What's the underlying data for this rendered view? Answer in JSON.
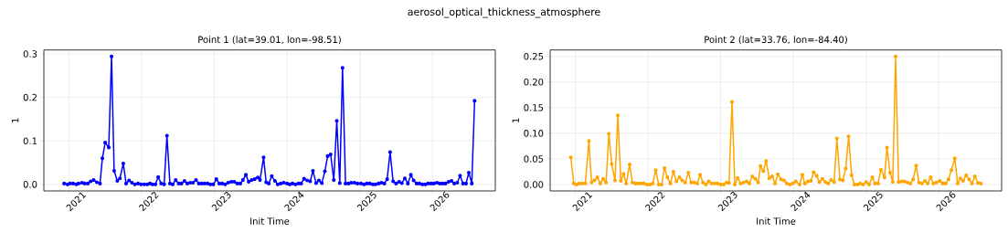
{
  "chart_data": [
    {
      "type": "line",
      "title": "Point 1 (lat=39.01, lon=-98.51)",
      "xlabel": "Init Time",
      "ylabel": "1",
      "annotations": [
        "aerosol_optical_thickness_atmosphere"
      ],
      "grid": true,
      "marker": "circle",
      "line_style": "solid",
      "xlim": [
        "2020-08-28",
        "2026-11-12"
      ],
      "xticks": [
        {
          "value": "2021-01-01",
          "label": "2021"
        },
        {
          "value": "2022-01-01",
          "label": "2022"
        },
        {
          "value": "2023-01-01",
          "label": "2023"
        },
        {
          "value": "2024-01-01",
          "label": "2024"
        },
        {
          "value": "2025-01-01",
          "label": "2025"
        },
        {
          "value": "2026-01-01",
          "label": "2026"
        }
      ],
      "ylim": [
        -0.015,
        0.309
      ],
      "yticks": [
        {
          "value": 0,
          "label": "0.0"
        },
        {
          "value": 0.1,
          "label": "0.1"
        },
        {
          "value": 0.2,
          "label": "0.2"
        },
        {
          "value": 0.3,
          "label": "0.3"
        }
      ],
      "x": [
        "2020-12-08",
        "2020-12-25",
        "2021-01-07",
        "2021-01-22",
        "2021-02-07",
        "2021-02-18",
        "2021-03-08",
        "2021-03-21",
        "2021-04-06",
        "2021-04-20",
        "2021-05-05",
        "2021-05-21",
        "2021-06-06",
        "2021-06-18",
        "2021-07-02",
        "2021-07-20",
        "2021-08-03",
        "2021-08-16",
        "2021-09-01",
        "2021-09-14",
        "2021-10-01",
        "2021-10-15",
        "2021-10-30",
        "2021-11-13",
        "2021-11-28",
        "2021-12-14",
        "2021-12-29",
        "2022-01-14",
        "2022-01-29",
        "2022-02-12",
        "2022-02-25",
        "2022-03-11",
        "2022-03-25",
        "2022-04-09",
        "2022-04-24",
        "2022-05-08",
        "2022-05-23",
        "2022-06-06",
        "2022-06-21",
        "2022-07-06",
        "2022-07-20",
        "2022-08-04",
        "2022-08-18",
        "2022-09-02",
        "2022-09-16",
        "2022-10-01",
        "2022-10-15",
        "2022-10-30",
        "2022-11-13",
        "2022-11-28",
        "2022-12-12",
        "2022-12-27",
        "2023-01-11",
        "2023-01-25",
        "2023-02-09",
        "2023-02-24",
        "2023-03-11",
        "2023-03-27",
        "2023-04-11",
        "2023-04-26",
        "2023-05-11",
        "2023-05-24",
        "2023-06-08",
        "2023-06-22",
        "2023-07-07",
        "2023-07-22",
        "2023-08-07",
        "2023-08-18",
        "2023-09-05",
        "2023-09-18",
        "2023-10-01",
        "2023-10-16",
        "2023-11-01",
        "2023-11-15",
        "2023-11-30",
        "2023-12-15",
        "2024-01-01",
        "2024-01-14",
        "2024-01-28",
        "2024-02-12",
        "2024-02-27",
        "2024-03-12",
        "2024-03-26",
        "2024-04-11",
        "2024-04-26",
        "2024-05-10",
        "2024-05-26",
        "2024-06-09",
        "2024-06-24",
        "2024-07-09",
        "2024-07-23",
        "2024-08-07",
        "2024-08-23",
        "2024-09-07",
        "2024-09-22",
        "2024-10-06",
        "2024-10-21",
        "2024-11-05",
        "2024-11-19",
        "2024-12-05",
        "2024-12-20",
        "2025-01-07",
        "2025-01-22",
        "2025-02-05",
        "2025-02-20",
        "2025-03-07",
        "2025-03-21",
        "2025-04-05",
        "2025-04-19",
        "2025-05-04",
        "2025-05-18",
        "2025-06-02",
        "2025-06-17",
        "2025-07-02",
        "2025-07-17",
        "2025-07-31",
        "2025-08-15",
        "2025-08-30",
        "2025-09-14",
        "2025-09-28",
        "2025-10-13",
        "2025-10-27",
        "2025-11-11",
        "2025-11-26",
        "2025-12-10",
        "2025-12-25",
        "2026-01-08",
        "2026-01-23",
        "2026-02-06",
        "2026-02-21",
        "2026-03-07",
        "2026-03-22",
        "2026-04-06",
        "2026-04-20",
        "2026-05-05",
        "2026-05-19",
        "2026-06-03",
        "2026-06-18",
        "2026-07-02",
        "2026-07-17",
        "2026-07-31"
      ],
      "series": [
        {
          "color": "#0000ff",
          "values": [
            0.002,
            0,
            0.002,
            0.002,
            0,
            0.002,
            0.004,
            0.002,
            0.002,
            0.007,
            0.01,
            0.005,
            0.002,
            0.06,
            0.096,
            0.085,
            0.294,
            0.031,
            0.008,
            0.014,
            0.048,
            0.002,
            0.009,
            0.004,
            0,
            0.002,
            0,
            0,
            0,
            0.002,
            0,
            0,
            0.017,
            0.002,
            0,
            0.112,
            0.002,
            0,
            0.01,
            0.002,
            0.002,
            0.008,
            0.002,
            0.004,
            0.004,
            0.01,
            0.002,
            0.002,
            0.002,
            0.002,
            0,
            0,
            0.012,
            0.002,
            0.002,
            0,
            0.004,
            0.006,
            0.006,
            0.002,
            0.002,
            0.01,
            0.022,
            0.006,
            0.01,
            0.012,
            0.016,
            0.01,
            0.062,
            0.005,
            0.002,
            0.019,
            0.008,
            0,
            0.002,
            0.004,
            0.002,
            0,
            0.002,
            0,
            0.002,
            0.002,
            0.013,
            0.009,
            0.007,
            0.031,
            0.003,
            0.009,
            0.003,
            0.03,
            0.065,
            0.069,
            0.01,
            0.146,
            0.003,
            0.268,
            0.002,
            0.002,
            0.004,
            0.004,
            0.002,
            0.002,
            0,
            0.002,
            0.002,
            0,
            0,
            0.002,
            0.004,
            0.002,
            0.012,
            0.074,
            0.007,
            0.002,
            0.006,
            0.003,
            0.014,
            0.002,
            0.022,
            0.009,
            0.002,
            0.002,
            0,
            0,
            0.002,
            0.002,
            0.002,
            0.004,
            0.002,
            0.002,
            0.002,
            0.006,
            0.008,
            0.002,
            0.004,
            0.02,
            0.002,
            0.002,
            0.027,
            0.002,
            0.192
          ]
        }
      ]
    },
    {
      "type": "line",
      "title": "Point 2 (lat=33.76, lon=-84.40)",
      "xlabel": "Init Time",
      "ylabel": "1",
      "grid": true,
      "marker": "circle",
      "line_style": "solid",
      "xlim": [
        "2020-08-28",
        "2026-11-12"
      ],
      "xticks": [
        {
          "value": "2021-01-01",
          "label": "2021"
        },
        {
          "value": "2022-01-01",
          "label": "2022"
        },
        {
          "value": "2023-01-01",
          "label": "2023"
        },
        {
          "value": "2024-01-01",
          "label": "2024"
        },
        {
          "value": "2025-01-01",
          "label": "2025"
        },
        {
          "value": "2026-01-01",
          "label": "2026"
        }
      ],
      "ylim": [
        -0.0125,
        0.2625
      ],
      "yticks": [
        {
          "value": 0,
          "label": "0.00"
        },
        {
          "value": 0.05,
          "label": "0.05"
        },
        {
          "value": 0.1,
          "label": "0.10"
        },
        {
          "value": 0.15,
          "label": "0.15"
        },
        {
          "value": 0.2,
          "label": "0.20"
        },
        {
          "value": 0.25,
          "label": "0.25"
        }
      ],
      "x": [
        "2020-12-10",
        "2020-12-25",
        "2021-01-08",
        "2021-01-22",
        "2021-02-06",
        "2021-02-21",
        "2021-03-11",
        "2021-03-24",
        "2021-04-07",
        "2021-04-22",
        "2021-05-07",
        "2021-05-21",
        "2021-06-05",
        "2021-06-19",
        "2021-07-03",
        "2021-07-20",
        "2021-08-03",
        "2021-08-18",
        "2021-09-01",
        "2021-09-14",
        "2021-10-01",
        "2021-10-15",
        "2021-10-30",
        "2021-11-13",
        "2021-11-28",
        "2021-12-12",
        "2021-12-27",
        "2022-01-11",
        "2022-01-25",
        "2022-02-09",
        "2022-02-24",
        "2022-03-11",
        "2022-03-25",
        "2022-04-09",
        "2022-04-24",
        "2022-05-09",
        "2022-05-24",
        "2022-06-08",
        "2022-06-22",
        "2022-07-07",
        "2022-07-23",
        "2022-08-06",
        "2022-08-21",
        "2022-09-05",
        "2022-09-20",
        "2022-10-04",
        "2022-10-19",
        "2022-11-02",
        "2022-11-17",
        "2022-12-02",
        "2022-12-17",
        "2023-01-01",
        "2023-01-16",
        "2023-01-30",
        "2023-02-12",
        "2023-02-27",
        "2023-03-13",
        "2023-03-27",
        "2023-04-11",
        "2023-04-26",
        "2023-05-11",
        "2023-05-25",
        "2023-06-09",
        "2023-06-24",
        "2023-07-08",
        "2023-07-20",
        "2023-08-03",
        "2023-08-17",
        "2023-09-02",
        "2023-09-17",
        "2023-10-01",
        "2023-10-15",
        "2023-10-31",
        "2023-11-15",
        "2023-11-29",
        "2023-12-14",
        "2023-12-29",
        "2024-01-13",
        "2024-02-01",
        "2024-02-15",
        "2024-02-28",
        "2024-03-14",
        "2024-03-29",
        "2024-04-12",
        "2024-04-27",
        "2024-05-11",
        "2024-05-26",
        "2024-06-10",
        "2024-06-24",
        "2024-07-09",
        "2024-07-24",
        "2024-08-07",
        "2024-08-22",
        "2024-09-06",
        "2024-09-20",
        "2024-10-05",
        "2024-10-20",
        "2024-11-03",
        "2024-11-18",
        "2024-12-02",
        "2024-12-17",
        "2025-01-01",
        "2025-01-16",
        "2025-02-01",
        "2025-02-15",
        "2025-03-02",
        "2025-03-16",
        "2025-04-03",
        "2025-04-16",
        "2025-05-01",
        "2025-05-15",
        "2025-05-29",
        "2025-06-13",
        "2025-06-28",
        "2025-07-12",
        "2025-07-27",
        "2025-08-11",
        "2025-08-25",
        "2025-09-09",
        "2025-09-23",
        "2025-10-08",
        "2025-10-23",
        "2025-11-06",
        "2025-11-21",
        "2025-12-05",
        "2025-12-20",
        "2026-01-06",
        "2026-01-20",
        "2026-02-04",
        "2026-02-18",
        "2026-03-05",
        "2026-03-22",
        "2026-04-05",
        "2026-04-19",
        "2026-05-03",
        "2026-05-18",
        "2026-06-02",
        "2026-06-16",
        "2026-07-01",
        "2026-07-16",
        "2026-07-31"
      ],
      "series": [
        {
          "color": "#ffa500",
          "values": [
            0.053,
            0.002,
            0,
            0.002,
            0.002,
            0.002,
            0.085,
            0.004,
            0.008,
            0.014,
            0.002,
            0.011,
            0.004,
            0.099,
            0.04,
            0.008,
            0.135,
            0.007,
            0.021,
            0.002,
            0.039,
            0.004,
            0.002,
            0.002,
            0.002,
            0.002,
            0,
            0,
            0.002,
            0.028,
            0,
            0,
            0.032,
            0.014,
            0.002,
            0.025,
            0.006,
            0.014,
            0.008,
            0.004,
            0.023,
            0.004,
            0.004,
            0.002,
            0.019,
            0.004,
            0,
            0.006,
            0.002,
            0.002,
            0.002,
            0,
            0,
            0.004,
            0.003,
            0.161,
            0,
            0.013,
            0.002,
            0.004,
            0.006,
            0.002,
            0.016,
            0.011,
            0.004,
            0.036,
            0.026,
            0.046,
            0.012,
            0.016,
            0.002,
            0.02,
            0.01,
            0.008,
            0.002,
            0,
            0.002,
            0.006,
            0,
            0.019,
            0.002,
            0.006,
            0.007,
            0.024,
            0.017,
            0.005,
            0.011,
            0.005,
            0.002,
            0.009,
            0.005,
            0.09,
            0.01,
            0.008,
            0.031,
            0.094,
            0.018,
            0,
            0,
            0.002,
            0,
            0.005,
            0,
            0.014,
            0.002,
            0.002,
            0.029,
            0.014,
            0.072,
            0.023,
            0.005,
            0.25,
            0.005,
            0.006,
            0.006,
            0.004,
            0.002,
            0.01,
            0.037,
            0.004,
            0.002,
            0.007,
            0.002,
            0.014,
            0.002,
            0.004,
            0.007,
            0.002,
            0.002,
            0.01,
            0.028,
            0.051,
            0.002,
            0.012,
            0.007,
            0.018,
            0.01,
            0.002,
            0.016,
            0.003,
            0.002
          ]
        }
      ]
    }
  ]
}
